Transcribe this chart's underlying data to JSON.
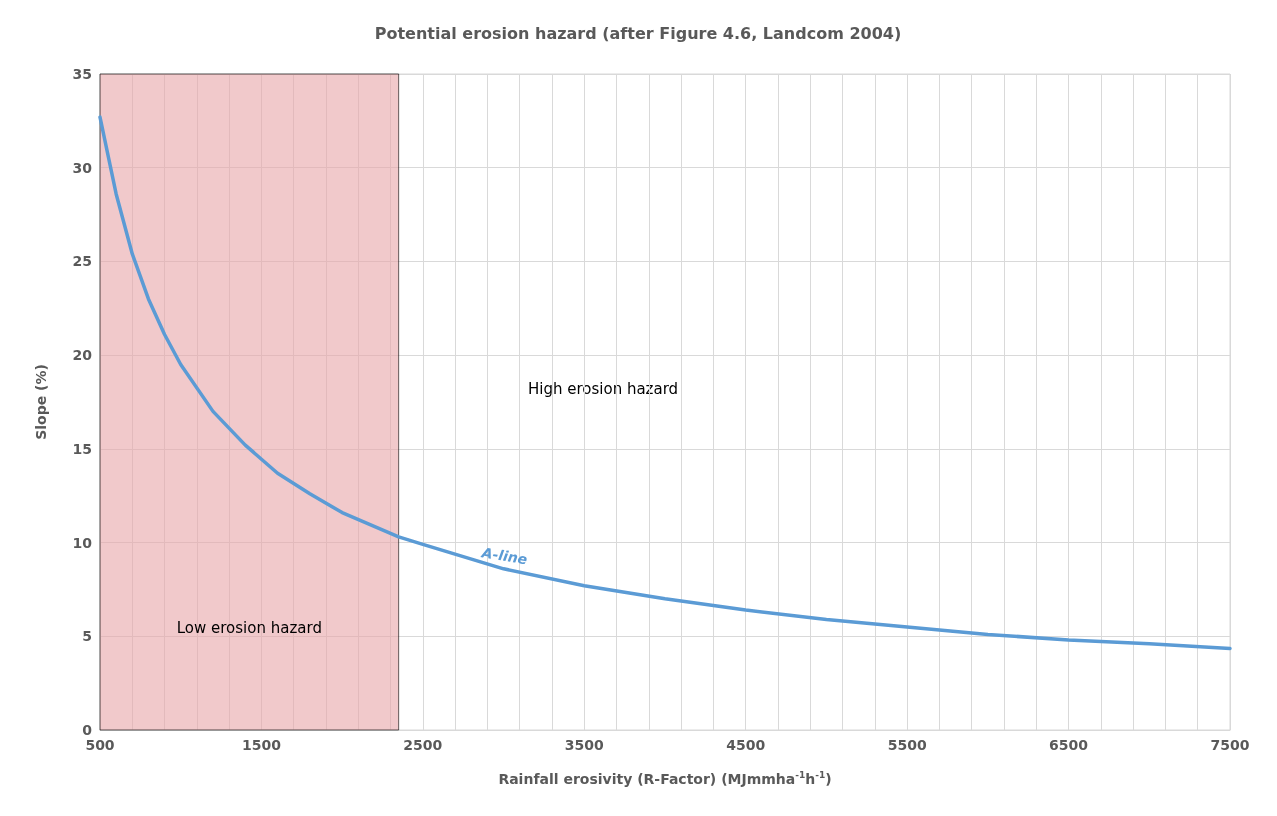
{
  "chart_data": {
    "type": "line",
    "title": "Potential erosion hazard (after Figure 4.6, Landcom 2004)",
    "xlabel": "Rainfall erosivity (R-Factor) (MJmmha$^{-1}$h$^{-1}$)",
    "ylabel": "Slope (%)",
    "series": [
      {
        "name": "A-line",
        "color": "#5b9bd5",
        "x": [
          500,
          600,
          700,
          800,
          900,
          1000,
          1200,
          1400,
          1600,
          1800,
          2000,
          2350,
          2500,
          3000,
          3500,
          4000,
          4500,
          5000,
          5500,
          6000,
          6500,
          7000,
          7500
        ],
        "values": [
          32.7,
          28.6,
          25.4,
          23.0,
          21.1,
          19.5,
          17.0,
          15.2,
          13.7,
          12.6,
          11.6,
          10.3,
          9.9,
          8.6,
          7.7,
          7.0,
          6.4,
          5.9,
          5.5,
          5.1,
          4.8,
          4.6,
          4.35
        ]
      }
    ],
    "xlim": [
      500,
      7500
    ],
    "xticks": [
      500,
      {
        "value": 700,
        "label": null
      },
      {
        "value": 900,
        "label": null
      },
      {
        "value": 1100,
        "label": null
      },
      {
        "value": 1300,
        "label": null
      },
      1500,
      {
        "value": 1700,
        "label": null
      },
      {
        "value": 1900,
        "label": null
      },
      {
        "value": 2100,
        "label": null
      },
      {
        "value": 2300,
        "label": null
      },
      2500,
      {
        "value": 2700,
        "label": null
      },
      {
        "value": 2900,
        "label": null
      },
      {
        "value": 3100,
        "label": null
      },
      {
        "value": 3300,
        "label": null
      },
      3500,
      {
        "value": 3700,
        "label": null
      },
      {
        "value": 3900,
        "label": null
      },
      {
        "value": 4100,
        "label": null
      },
      {
        "value": 4300,
        "label": null
      },
      4500,
      {
        "value": 4700,
        "label": null
      },
      {
        "value": 4900,
        "label": null
      },
      {
        "value": 5100,
        "label": null
      },
      {
        "value": 5300,
        "label": null
      },
      5500,
      {
        "value": 5700,
        "label": null
      },
      {
        "value": 5900,
        "label": null
      },
      {
        "value": 6100,
        "label": null
      },
      {
        "value": 6300,
        "label": null
      },
      6500,
      {
        "value": 6700,
        "label": null
      },
      {
        "value": 6900,
        "label": null
      },
      {
        "value": 7100,
        "label": null
      },
      {
        "value": 7300,
        "label": null
      },
      7500
    ],
    "ylim": [
      0,
      35
    ],
    "yticks": [
      0,
      5,
      10,
      15,
      20,
      25,
      30,
      35
    ],
    "bands": [
      {
        "axis": "x",
        "from": 500,
        "to": 2350,
        "label": "Low erosion hazard",
        "color": "#e8a5a8"
      }
    ],
    "annotations": [
      "High erosion hazard"
    ],
    "grid": true,
    "legend": false,
    "marker": "none",
    "line_style": "solid"
  }
}
